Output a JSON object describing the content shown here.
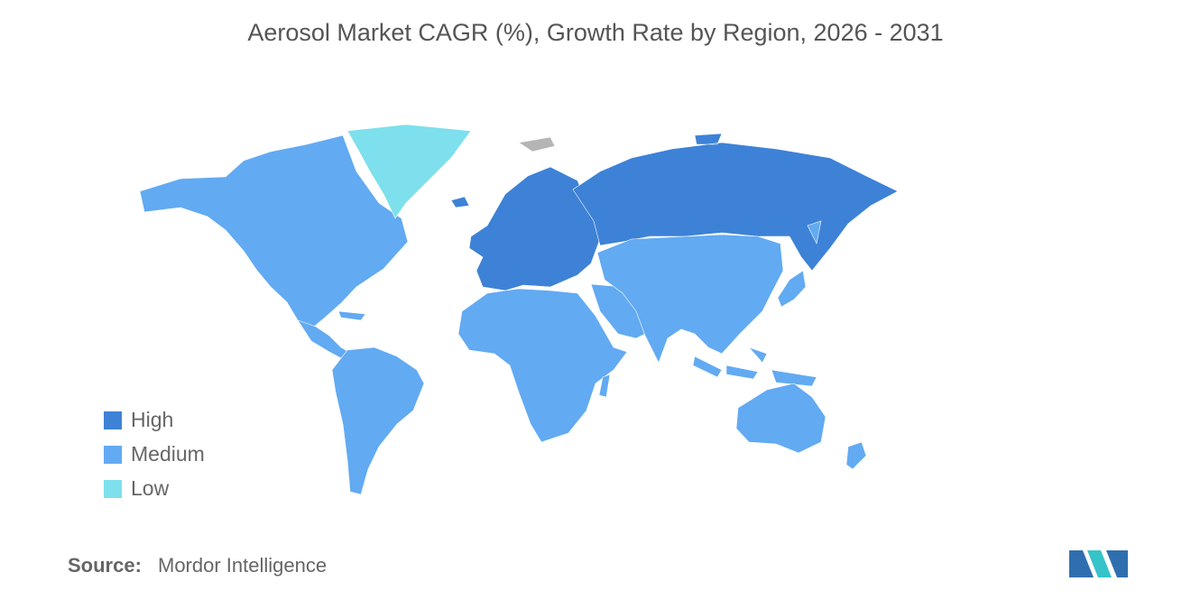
{
  "title": "Aerosol Market CAGR (%), Growth Rate by Region, 2026 - 2031",
  "legend": [
    {
      "label": "High",
      "color": "#3d82d6"
    },
    {
      "label": "Medium",
      "color": "#62aaf2"
    },
    {
      "label": "Low",
      "color": "#7de0ec"
    }
  ],
  "source": {
    "label": "Source:",
    "text": "Mordor Intelligence"
  }
}
